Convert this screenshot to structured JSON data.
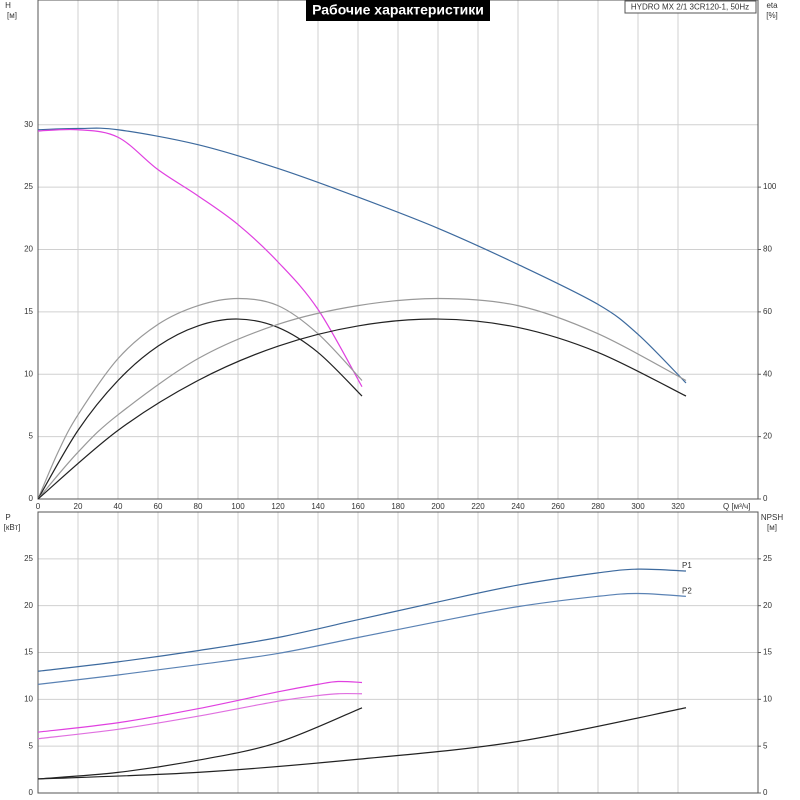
{
  "chart_data": [
    {
      "type": "line",
      "title": "Рабочие характеристики",
      "subtitle": "HYDRO MX 2/1 3CR120-1, 50Hz",
      "ylabel": "H",
      "yunit": "[м]",
      "y2label": "eta",
      "y2unit": "[%]",
      "xlabel": "Q [м³/ч]",
      "xlim": [
        0,
        360
      ],
      "xticks": [
        0,
        20,
        40,
        60,
        80,
        100,
        120,
        140,
        160,
        180,
        200,
        220,
        240,
        260,
        280,
        300,
        320
      ],
      "ylim": [
        0,
        40
      ],
      "yticks": [
        0,
        5,
        10,
        15,
        20,
        25,
        30
      ],
      "y2lim": [
        0,
        160
      ],
      "y2ticks": [
        0,
        20,
        40,
        60,
        80,
        100
      ],
      "grid": true,
      "series": [
        {
          "color": "#3d6a9e",
          "x": [
            0,
            20,
            40,
            80,
            120,
            160,
            200,
            240,
            280,
            300,
            324
          ],
          "values": [
            29.6,
            29.7,
            29.6,
            28.4,
            26.5,
            24.2,
            21.7,
            18.8,
            15.6,
            13.2,
            9.3
          ]
        },
        {
          "color": "#e040e0",
          "x": [
            0,
            20,
            40,
            60,
            80,
            100,
            120,
            140,
            162
          ],
          "values": [
            29.5,
            29.6,
            29.0,
            26.4,
            24.3,
            22.0,
            19.0,
            15.2,
            9.0
          ]
        },
        {
          "color": "#999999",
          "axis": "y2",
          "x": [
            0,
            10,
            20,
            40,
            60,
            80,
            100,
            120,
            140,
            162
          ],
          "values": [
            0,
            15,
            27,
            45,
            56,
            62,
            64.3,
            62,
            53,
            38
          ]
        },
        {
          "color": "#222222",
          "axis": "y2",
          "x": [
            0,
            20,
            40,
            60,
            80,
            100,
            120,
            140,
            162
          ],
          "values": [
            0,
            22,
            38,
            49,
            55.5,
            57.7,
            55,
            47,
            33
          ]
        },
        {
          "color": "#999999",
          "axis": "y2",
          "x": [
            0,
            20,
            40,
            80,
            120,
            160,
            200,
            240,
            280,
            324
          ],
          "values": [
            0,
            15,
            27,
            45,
            56,
            62,
            64.3,
            62,
            53,
            38
          ]
        },
        {
          "color": "#222222",
          "axis": "y2",
          "x": [
            0,
            40,
            80,
            120,
            160,
            200,
            240,
            280,
            324
          ],
          "values": [
            0,
            22,
            38,
            49,
            55.5,
            57.7,
            55,
            47,
            33
          ]
        }
      ]
    },
    {
      "type": "line",
      "ylabel": "P",
      "yunit": "[кВт]",
      "y2label": "NPSH",
      "y2unit": "[м]",
      "xlim": [
        0,
        360
      ],
      "ylim": [
        0,
        30
      ],
      "yticks": [
        0,
        5,
        10,
        15,
        20,
        25
      ],
      "y2lim": [
        0,
        30
      ],
      "y2ticks": [
        0,
        5,
        10,
        15,
        20,
        25
      ],
      "grid": true,
      "series": [
        {
          "name": "P1",
          "color": "#3d6a9e",
          "x": [
            0,
            40,
            80,
            120,
            160,
            200,
            240,
            280,
            300,
            324
          ],
          "values": [
            13.0,
            14.0,
            15.2,
            16.6,
            18.5,
            20.4,
            22.2,
            23.5,
            23.9,
            23.7
          ]
        },
        {
          "name": "P2",
          "color": "#5a82b4",
          "x": [
            0,
            40,
            80,
            120,
            160,
            200,
            240,
            280,
            300,
            324
          ],
          "values": [
            11.6,
            12.6,
            13.7,
            14.9,
            16.6,
            18.3,
            19.9,
            21.0,
            21.3,
            21.0
          ]
        },
        {
          "color": "#e040e0",
          "x": [
            0,
            40,
            80,
            120,
            140,
            150,
            162
          ],
          "values": [
            6.5,
            7.5,
            9.0,
            10.8,
            11.6,
            11.9,
            11.8
          ]
        },
        {
          "color": "#e070e0",
          "x": [
            0,
            40,
            80,
            120,
            140,
            150,
            162
          ],
          "values": [
            5.8,
            6.8,
            8.2,
            9.8,
            10.4,
            10.6,
            10.6
          ]
        },
        {
          "color": "#222222",
          "axis": "y2",
          "x": [
            0,
            40,
            80,
            120,
            162
          ],
          "values": [
            1.5,
            2.2,
            3.5,
            5.4,
            9.1
          ]
        },
        {
          "color": "#222222",
          "axis": "y2",
          "x": [
            0,
            80,
            160,
            240,
            324
          ],
          "values": [
            1.5,
            2.2,
            3.6,
            5.5,
            9.1
          ]
        }
      ]
    }
  ]
}
